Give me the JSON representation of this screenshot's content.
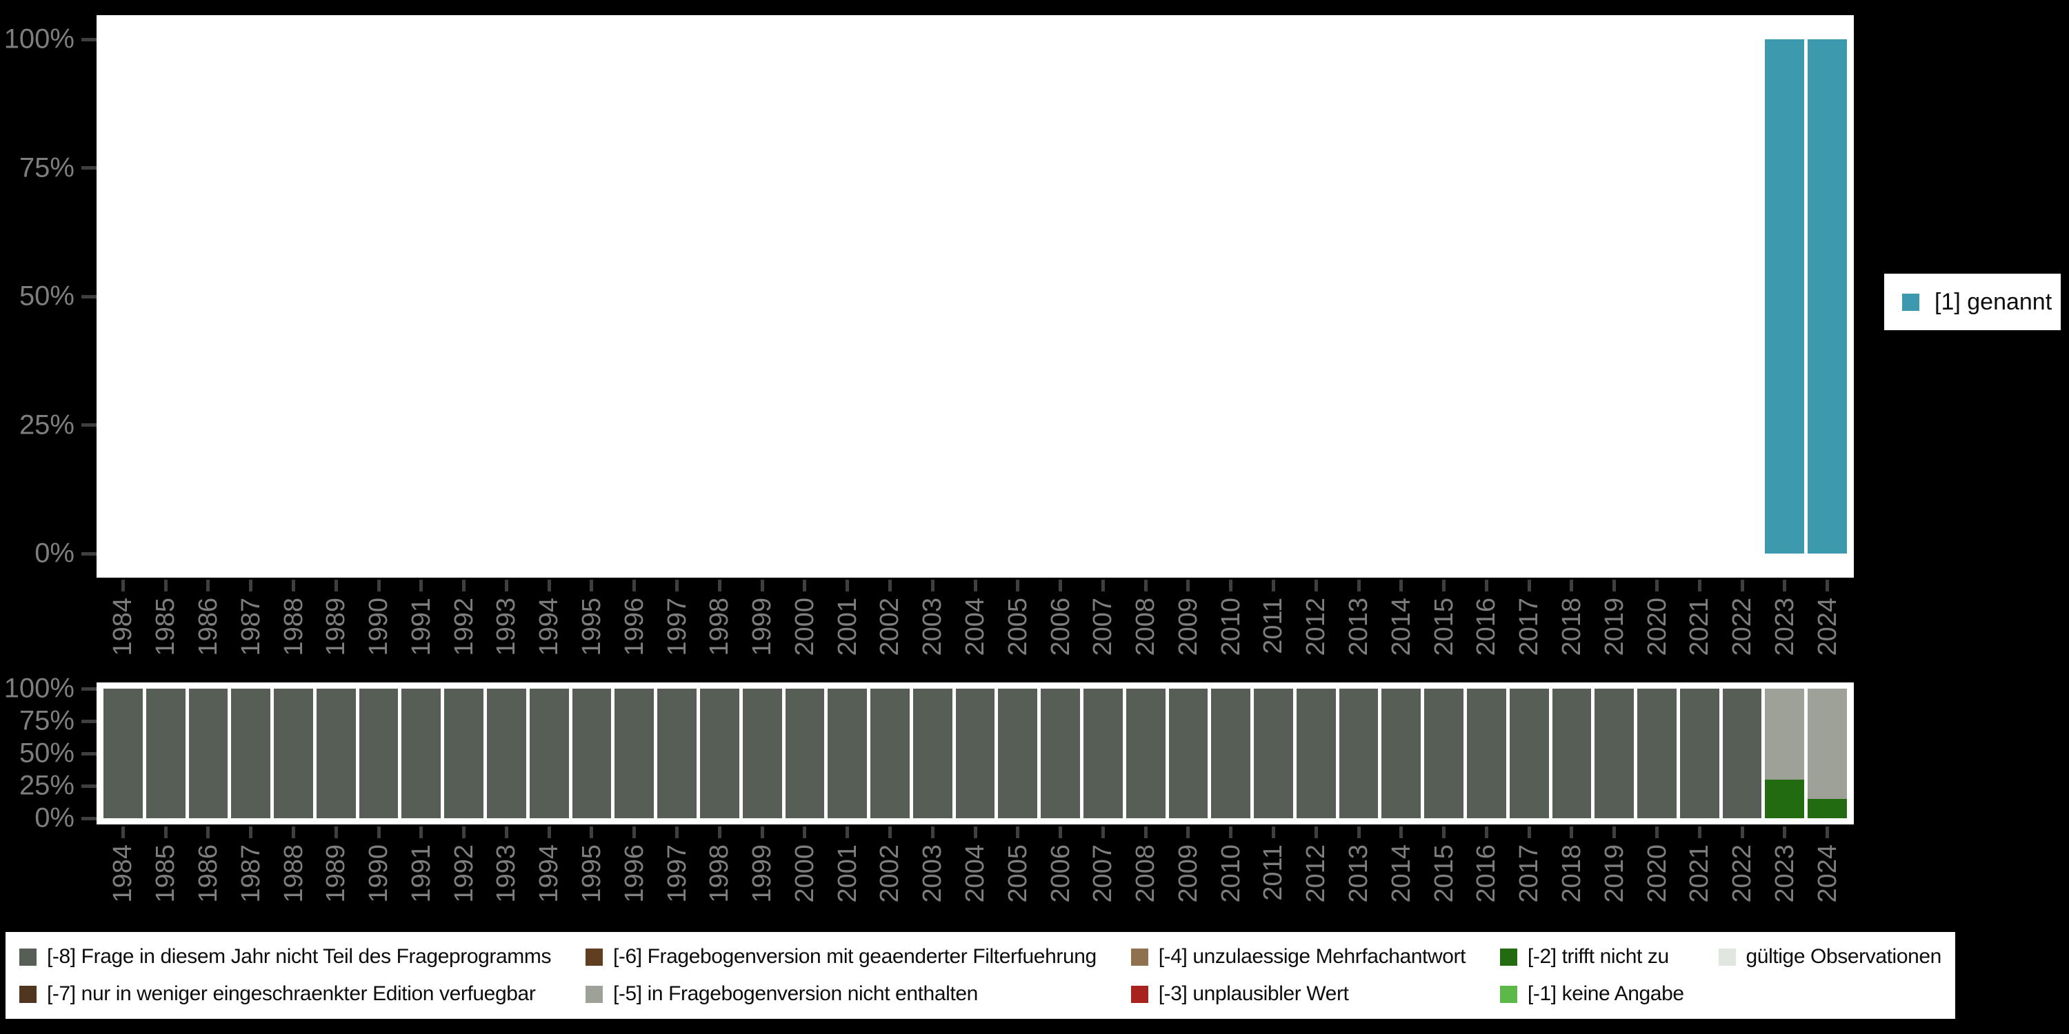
{
  "top_legend": {
    "label": "[1] genannt",
    "color": "#3d99ae"
  },
  "missing_legend": {
    "items": [
      {
        "code": "-8",
        "label": "[-8] Frage in diesem Jahr nicht Teil des Frageprogramms",
        "color": "#565e56"
      },
      {
        "code": "-6",
        "label": "[-6] Fragebogenversion mit geaenderter Filterfuehrung",
        "color": "#603e1f"
      },
      {
        "code": "-4",
        "label": "[-4] unzulaessige Mehrfachantwort",
        "color": "#8f7150"
      },
      {
        "code": "-2",
        "label": "[-2] trifft nicht zu",
        "color": "#226b10"
      },
      {
        "code": "valid",
        "label": "gültige Observationen",
        "color": "#e2e6e0"
      },
      {
        "code": "-7",
        "label": "[-7] nur in weniger eingeschraenkter Edition verfuegbar",
        "color": "#503621"
      },
      {
        "code": "-5",
        "label": "[-5] in Fragebogenversion nicht enthalten",
        "color": "#9da197"
      },
      {
        "code": "-3",
        "label": "[-3] unplausibler Wert",
        "color": "#a8231d"
      },
      {
        "code": "-1",
        "label": "[-1] keine Angabe",
        "color": "#5cb949"
      }
    ]
  },
  "chart_data": [
    {
      "id": "valid-answers",
      "type": "bar",
      "stacked": true,
      "unit": "percent",
      "title": "",
      "xlabel": "",
      "ylabel": "",
      "ylim": [
        0,
        100
      ],
      "grid": false,
      "legend_position": "right",
      "yticks": [
        "100%",
        "75%",
        "50%",
        "25%",
        "0%"
      ],
      "x": [
        "1984",
        "1985",
        "1986",
        "1987",
        "1988",
        "1989",
        "1990",
        "1991",
        "1992",
        "1993",
        "1994",
        "1995",
        "1996",
        "1997",
        "1998",
        "1999",
        "2000",
        "2001",
        "2002",
        "2003",
        "2004",
        "2005",
        "2006",
        "2007",
        "2008",
        "2009",
        "2010",
        "2011",
        "2012",
        "2013",
        "2014",
        "2015",
        "2016",
        "2017",
        "2018",
        "2019",
        "2020",
        "2021",
        "2022",
        "2023",
        "2024"
      ],
      "series": [
        {
          "name": "[1] genannt",
          "color": "#3d99ae",
          "values": [
            0,
            0,
            0,
            0,
            0,
            0,
            0,
            0,
            0,
            0,
            0,
            0,
            0,
            0,
            0,
            0,
            0,
            0,
            0,
            0,
            0,
            0,
            0,
            0,
            0,
            0,
            0,
            0,
            0,
            0,
            0,
            0,
            0,
            0,
            0,
            0,
            0,
            0,
            0,
            100,
            100
          ]
        }
      ]
    },
    {
      "id": "missing-codes",
      "type": "bar",
      "stacked": true,
      "unit": "percent",
      "title": "",
      "xlabel": "",
      "ylabel": "",
      "ylim": [
        0,
        100
      ],
      "grid": false,
      "legend_position": "bottom",
      "yticks": [
        "100%",
        "75%",
        "50%",
        "25%",
        "0%"
      ],
      "x": [
        "1984",
        "1985",
        "1986",
        "1987",
        "1988",
        "1989",
        "1990",
        "1991",
        "1992",
        "1993",
        "1994",
        "1995",
        "1996",
        "1997",
        "1998",
        "1999",
        "2000",
        "2001",
        "2002",
        "2003",
        "2004",
        "2005",
        "2006",
        "2007",
        "2008",
        "2009",
        "2010",
        "2011",
        "2012",
        "2013",
        "2014",
        "2015",
        "2016",
        "2017",
        "2018",
        "2019",
        "2020",
        "2021",
        "2022",
        "2023",
        "2024"
      ],
      "series": [
        {
          "name": "[-8] Frage in diesem Jahr nicht Teil des Frageprogramms",
          "color": "#565e56",
          "values": [
            100,
            100,
            100,
            100,
            100,
            100,
            100,
            100,
            100,
            100,
            100,
            100,
            100,
            100,
            100,
            100,
            100,
            100,
            100,
            100,
            100,
            100,
            100,
            100,
            100,
            100,
            100,
            100,
            100,
            100,
            100,
            100,
            100,
            100,
            100,
            100,
            100,
            100,
            100,
            0,
            0
          ]
        },
        {
          "name": "[-2] trifft nicht zu",
          "color": "#226b10",
          "values": [
            0,
            0,
            0,
            0,
            0,
            0,
            0,
            0,
            0,
            0,
            0,
            0,
            0,
            0,
            0,
            0,
            0,
            0,
            0,
            0,
            0,
            0,
            0,
            0,
            0,
            0,
            0,
            0,
            0,
            0,
            0,
            0,
            0,
            0,
            0,
            0,
            0,
            0,
            0,
            30,
            15
          ]
        },
        {
          "name": "[-5] in Fragebogenversion nicht enthalten",
          "color": "#9da197",
          "values": [
            0,
            0,
            0,
            0,
            0,
            0,
            0,
            0,
            0,
            0,
            0,
            0,
            0,
            0,
            0,
            0,
            0,
            0,
            0,
            0,
            0,
            0,
            0,
            0,
            0,
            0,
            0,
            0,
            0,
            0,
            0,
            0,
            0,
            0,
            0,
            0,
            0,
            0,
            0,
            70,
            85
          ]
        }
      ]
    }
  ]
}
